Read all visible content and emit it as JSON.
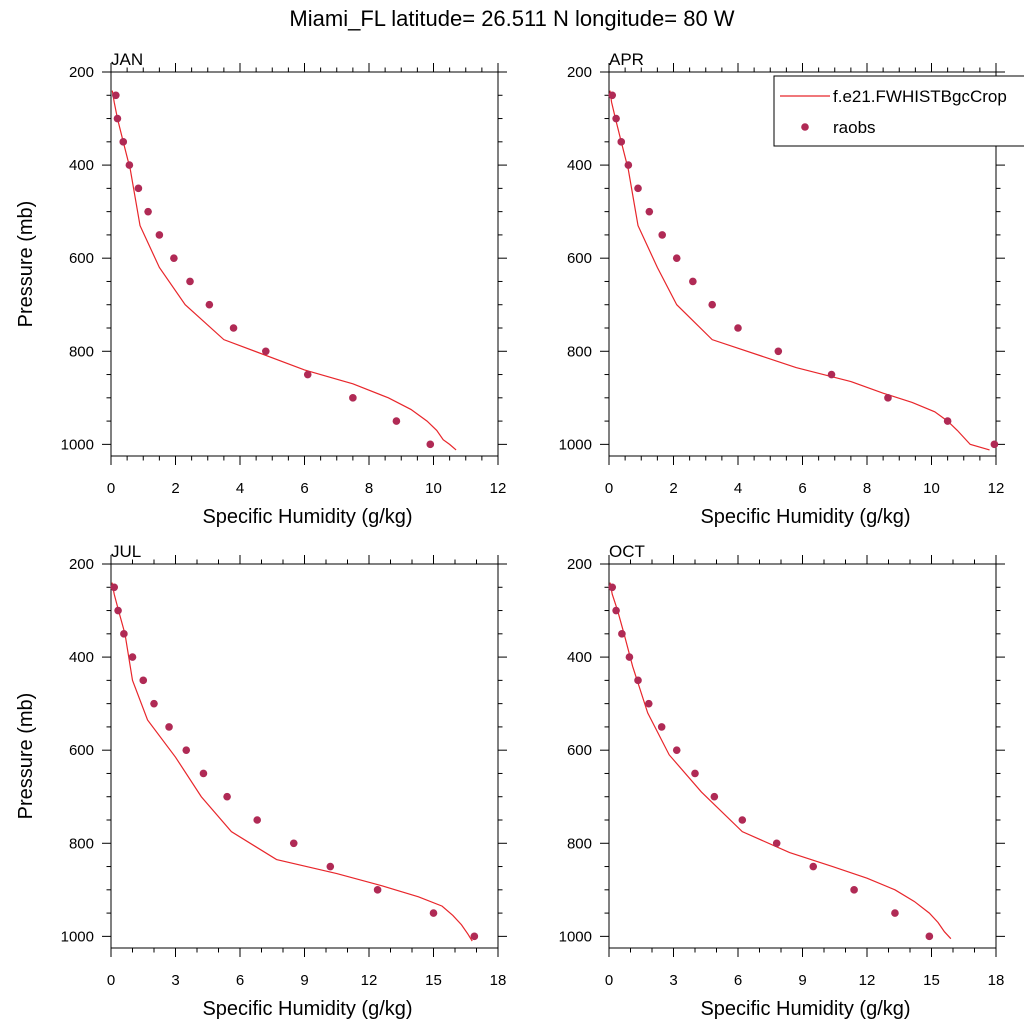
{
  "title": "Miami_FL  latitude= 26.511 N longitude= 80 W",
  "legend": {
    "model_label": "f.e21.FWHISTBgcCrop",
    "obs_label": "raobs"
  },
  "colors": {
    "model_line": "#e8262b",
    "obs_marker": "#b02a55"
  },
  "chart_data": [
    {
      "type": "line",
      "title": "JAN",
      "xlabel": "Specific Humidity (g/kg)",
      "ylabel": "Pressure (mb)",
      "xlim": [
        0,
        12
      ],
      "ylim": [
        200,
        1025
      ],
      "y_inverted": true,
      "xticks": [
        "0",
        "2",
        "4",
        "6",
        "8",
        "10",
        "12"
      ],
      "yticks": [
        "200",
        "400",
        "600",
        "800",
        "1000"
      ],
      "series": [
        {
          "name": "f.e21.FWHISTBgcCrop",
          "style": "line",
          "x": [
            0.04,
            0.1,
            0.2,
            0.38,
            0.6,
            0.9,
            1.5,
            2.3,
            3.5,
            6.0,
            7.5,
            8.6,
            9.3,
            9.8,
            10.1,
            10.3,
            10.5,
            10.7
          ],
          "y": [
            240,
            265,
            300,
            350,
            410,
            530,
            620,
            700,
            775,
            840,
            870,
            900,
            925,
            950,
            970,
            990,
            1000,
            1012
          ]
        },
        {
          "name": "raobs",
          "style": "markers",
          "x": [
            0.15,
            0.2,
            0.38,
            0.57,
            0.85,
            1.15,
            1.5,
            1.95,
            2.45,
            3.05,
            3.8,
            4.8,
            6.1,
            7.5,
            8.85,
            9.9
          ],
          "y": [
            250,
            300,
            350,
            400,
            450,
            500,
            550,
            600,
            650,
            700,
            750,
            800,
            850,
            900,
            950,
            1000
          ]
        }
      ]
    },
    {
      "type": "line",
      "title": "APR",
      "xlabel": "Specific Humidity (g/kg)",
      "ylabel": "",
      "xlim": [
        0,
        12
      ],
      "ylim": [
        200,
        1025
      ],
      "y_inverted": true,
      "xticks": [
        "0",
        "2",
        "4",
        "6",
        "8",
        "10",
        "12"
      ],
      "yticks": [
        "200",
        "400",
        "600",
        "800",
        "1000"
      ],
      "series": [
        {
          "name": "f.e21.FWHISTBgcCrop",
          "style": "line",
          "x": [
            0.03,
            0.08,
            0.2,
            0.38,
            0.6,
            0.9,
            1.5,
            2.1,
            3.2,
            5.8,
            7.5,
            8.5,
            9.4,
            10.1,
            10.5,
            10.8,
            11.2,
            11.8
          ],
          "y": [
            240,
            265,
            300,
            350,
            410,
            530,
            620,
            700,
            775,
            835,
            865,
            890,
            910,
            930,
            950,
            970,
            1000,
            1012
          ]
        },
        {
          "name": "raobs",
          "style": "markers",
          "x": [
            0.1,
            0.22,
            0.38,
            0.6,
            0.9,
            1.25,
            1.65,
            2.1,
            2.6,
            3.2,
            4.0,
            5.25,
            6.9,
            8.65,
            10.5,
            11.95
          ],
          "y": [
            250,
            300,
            350,
            400,
            450,
            500,
            550,
            600,
            650,
            700,
            750,
            800,
            850,
            900,
            950,
            1000
          ]
        }
      ]
    },
    {
      "type": "line",
      "title": "JUL",
      "xlabel": "Specific Humidity (g/kg)",
      "ylabel": "Pressure (mb)",
      "xlim": [
        0,
        18
      ],
      "ylim": [
        200,
        1025
      ],
      "y_inverted": true,
      "xticks": [
        "0",
        "3",
        "6",
        "9",
        "12",
        "15",
        "18"
      ],
      "yticks": [
        "200",
        "400",
        "600",
        "800",
        "1000"
      ],
      "series": [
        {
          "name": "f.e21.FWHISTBgcCrop",
          "style": "line",
          "x": [
            0.05,
            0.15,
            0.35,
            0.65,
            1.0,
            1.7,
            3.0,
            4.2,
            5.6,
            7.7,
            10.5,
            12.5,
            14.3,
            15.4,
            15.9,
            16.3,
            16.6,
            16.8
          ],
          "y": [
            240,
            265,
            300,
            350,
            450,
            535,
            615,
            700,
            775,
            835,
            865,
            890,
            915,
            935,
            955,
            975,
            995,
            1010
          ]
        },
        {
          "name": "raobs",
          "style": "markers",
          "x": [
            0.15,
            0.33,
            0.6,
            1.0,
            1.5,
            2.0,
            2.7,
            3.5,
            4.3,
            5.4,
            6.8,
            8.5,
            10.2,
            12.4,
            15.0,
            16.9
          ],
          "y": [
            250,
            300,
            350,
            400,
            450,
            500,
            550,
            600,
            650,
            700,
            750,
            800,
            850,
            900,
            950,
            1000
          ]
        }
      ]
    },
    {
      "type": "line",
      "title": "OCT",
      "xlabel": "Specific Humidity (g/kg)",
      "ylabel": "",
      "xlim": [
        0,
        18
      ],
      "ylim": [
        200,
        1025
      ],
      "y_inverted": true,
      "xticks": [
        "0",
        "3",
        "6",
        "9",
        "12",
        "15",
        "18"
      ],
      "yticks": [
        "200",
        "400",
        "600",
        "800",
        "1000"
      ],
      "series": [
        {
          "name": "f.e21.FWHISTBgcCrop",
          "style": "line",
          "x": [
            0.05,
            0.15,
            0.4,
            0.7,
            1.1,
            1.8,
            2.8,
            4.3,
            6.2,
            8.4,
            10.4,
            12.0,
            13.3,
            14.2,
            14.9,
            15.3,
            15.6,
            15.9
          ],
          "y": [
            240,
            265,
            300,
            350,
            420,
            520,
            610,
            690,
            775,
            820,
            850,
            875,
            900,
            925,
            950,
            970,
            990,
            1005
          ]
        },
        {
          "name": "raobs",
          "style": "markers",
          "x": [
            0.15,
            0.33,
            0.6,
            0.95,
            1.35,
            1.85,
            2.45,
            3.15,
            4.0,
            4.9,
            6.2,
            7.8,
            9.5,
            11.4,
            13.3,
            14.9
          ],
          "y": [
            250,
            300,
            350,
            400,
            450,
            500,
            550,
            600,
            650,
            700,
            750,
            800,
            850,
            900,
            950,
            1000
          ]
        }
      ]
    }
  ]
}
